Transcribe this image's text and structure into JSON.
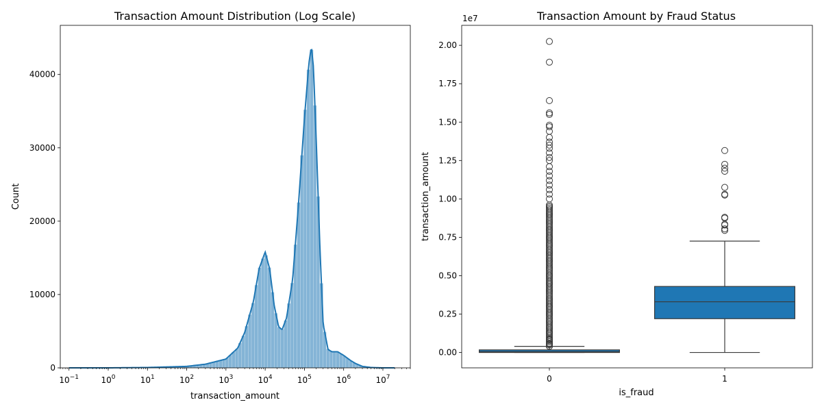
{
  "chart_data": [
    {
      "type": "histogram",
      "title": "Transaction Amount Distribution (Log Scale)",
      "xlabel": "transaction_amount",
      "ylabel": "Count",
      "xscale": "log",
      "xlim": [
        0.06,
        50000000
      ],
      "ylim": [
        0,
        46700
      ],
      "x_tick_exponents": [
        -1,
        0,
        1,
        2,
        3,
        4,
        5,
        6,
        7
      ],
      "y_ticks": [
        0,
        10000,
        20000,
        30000,
        40000
      ],
      "color": "#1f77b4",
      "kde_curve": {
        "x": [
          0.1,
          1,
          10,
          100,
          300,
          1000,
          2000,
          3000,
          5000,
          7000,
          10000,
          13000,
          17000,
          22000,
          27000,
          35000,
          50000,
          70000,
          100000,
          130000,
          150000,
          170000,
          200000,
          250000,
          300000,
          400000,
          500000,
          700000,
          1000000,
          1500000,
          2000000,
          3000000,
          5000000,
          10000000,
          20000000
        ],
        "y": [
          0,
          0,
          50,
          200,
          500,
          1200,
          2700,
          4800,
          9000,
          13500,
          15800,
          13500,
          8500,
          5600,
          5200,
          6800,
          12000,
          22000,
          34000,
          41500,
          43800,
          41000,
          31000,
          16000,
          6000,
          2500,
          2200,
          2200,
          1700,
          1000,
          600,
          200,
          50,
          0,
          0
        ]
      }
    },
    {
      "type": "box",
      "title": "Transaction Amount by Fraud Status",
      "xlabel": "is_fraud",
      "ylabel": "transaction_amount",
      "offset_label": "1e7",
      "categories": [
        "0",
        "1"
      ],
      "ylim": [
        -0.1,
        2.13
      ],
      "y_ticks": [
        "0.00",
        "0.25",
        "0.50",
        "0.75",
        "1.00",
        "1.25",
        "1.50",
        "1.75",
        "2.00"
      ],
      "color": "#1f77b4",
      "boxes": [
        {
          "category": "0",
          "whisker_low": 0.0,
          "q1": 0.0,
          "median": 0.005,
          "q3": 0.017,
          "whisker_high": 0.04,
          "outliers": [
            0.04,
            0.055,
            0.07,
            0.085,
            0.1,
            0.13,
            0.16,
            0.2,
            0.25,
            0.3,
            0.35,
            0.4,
            0.45,
            0.5,
            0.55,
            0.6,
            0.65,
            0.7,
            0.75,
            0.8,
            0.85,
            0.9,
            0.95,
            1.0,
            1.03,
            1.06,
            1.09,
            1.12,
            1.15,
            1.18,
            1.21,
            1.25,
            1.27,
            1.3,
            1.33,
            1.35,
            1.37,
            1.4,
            1.44,
            1.47,
            1.48,
            1.55,
            1.56,
            1.64,
            1.89,
            2.025
          ]
        },
        {
          "category": "1",
          "whisker_low": 0.0,
          "q1": 0.22,
          "median": 0.33,
          "q3": 0.43,
          "whisker_high": 0.725,
          "outliers": [
            0.795,
            0.805,
            0.83,
            0.835,
            0.875,
            0.88,
            1.025,
            1.03,
            1.075,
            1.18,
            1.2,
            1.225,
            1.315
          ]
        }
      ]
    }
  ]
}
